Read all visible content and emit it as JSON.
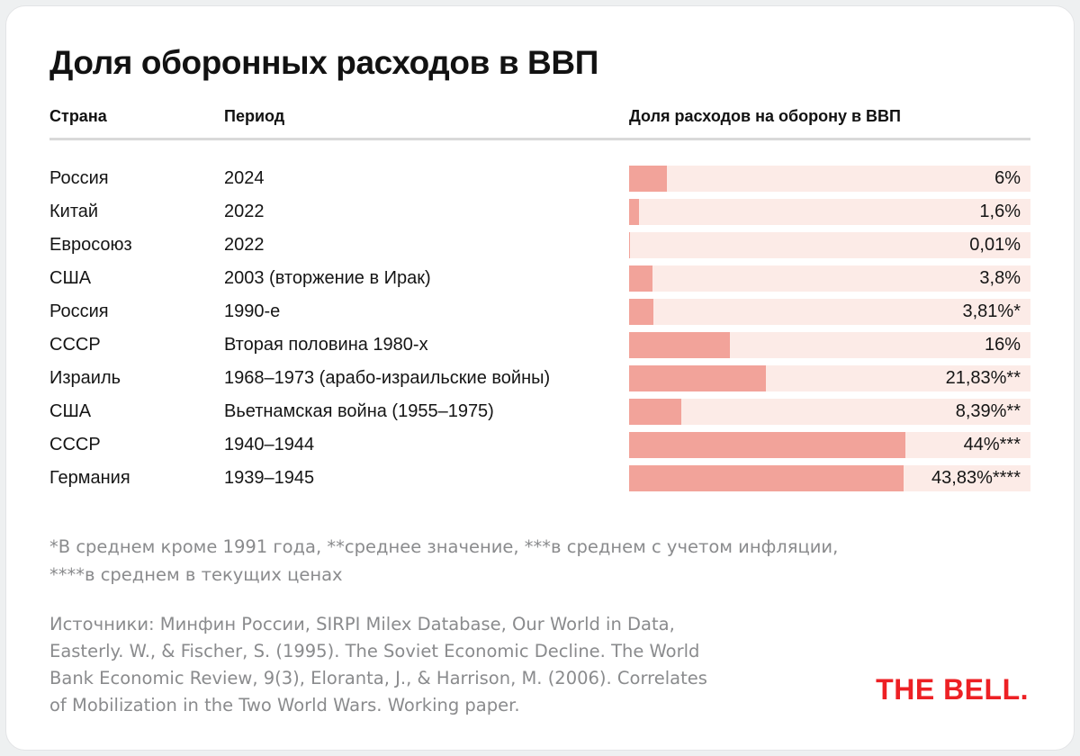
{
  "table": {
    "headers": {
      "country": "Страна",
      "period": "Период",
      "share": "Доля расходов на оборону в ВВП"
    }
  },
  "chart_data": {
    "type": "bar",
    "orientation": "horizontal",
    "title": "Доля оборонных расходов в ВВП",
    "value_unit": "% of GDP",
    "axis_max": 64,
    "legend": "none",
    "rows": [
      {
        "country": "Россия",
        "period": "2024",
        "value": 6,
        "value_label": "6%"
      },
      {
        "country": "Китай",
        "period": "2022",
        "value": 1.6,
        "value_label": "1,6%"
      },
      {
        "country": "Евросоюз",
        "period": "2022",
        "value": 0.01,
        "value_label": "0,01%"
      },
      {
        "country": "США",
        "period": "2003 (вторжение в Ирак)",
        "value": 3.8,
        "value_label": "3,8%"
      },
      {
        "country": "Россия",
        "period": "1990-е",
        "value": 3.81,
        "value_label": "3,81%*"
      },
      {
        "country": "СССР",
        "period": "Вторая половина 1980-х",
        "value": 16,
        "value_label": "16%"
      },
      {
        "country": "Израиль",
        "period": "1968–1973 (арабо-израильские войны)",
        "value": 21.83,
        "value_label": "21,83%**"
      },
      {
        "country": "США",
        "period": "Вьетнамская война (1955–1975)",
        "value": 8.39,
        "value_label": "8,39%**"
      },
      {
        "country": "СССР",
        "period": "1940–1944",
        "value": 44,
        "value_label": "44%***"
      },
      {
        "country": "Германия",
        "period": "1939–1945",
        "value": 43.83,
        "value_label": "43,83%****"
      }
    ]
  },
  "footnotes": [
    "*В среднем кроме 1991 года, **среднее значение, ***в среднем с учетом инфляции,",
    "****в среднем в текущих ценах"
  ],
  "sources": [
    "Источники: Минфин России, SIRPI Milex Database, Our World in Data,",
    "Easterly. W., & Fischer, S. (1995). The Soviet Economic Decline. The World",
    "Bank Economic Review, 9(3), Eloranta, J., & Harrison, M. (2006). Correlates",
    "of Mobilization in the Two World Wars. Working paper."
  ],
  "logo": "THE BELL.",
  "colors": {
    "bar_fill": "#f2a39a",
    "bar_bg": "#fcebe7",
    "divider": "#d9d9d9",
    "text_gray": "#8a8b8d",
    "accent_red": "#ed2024"
  }
}
